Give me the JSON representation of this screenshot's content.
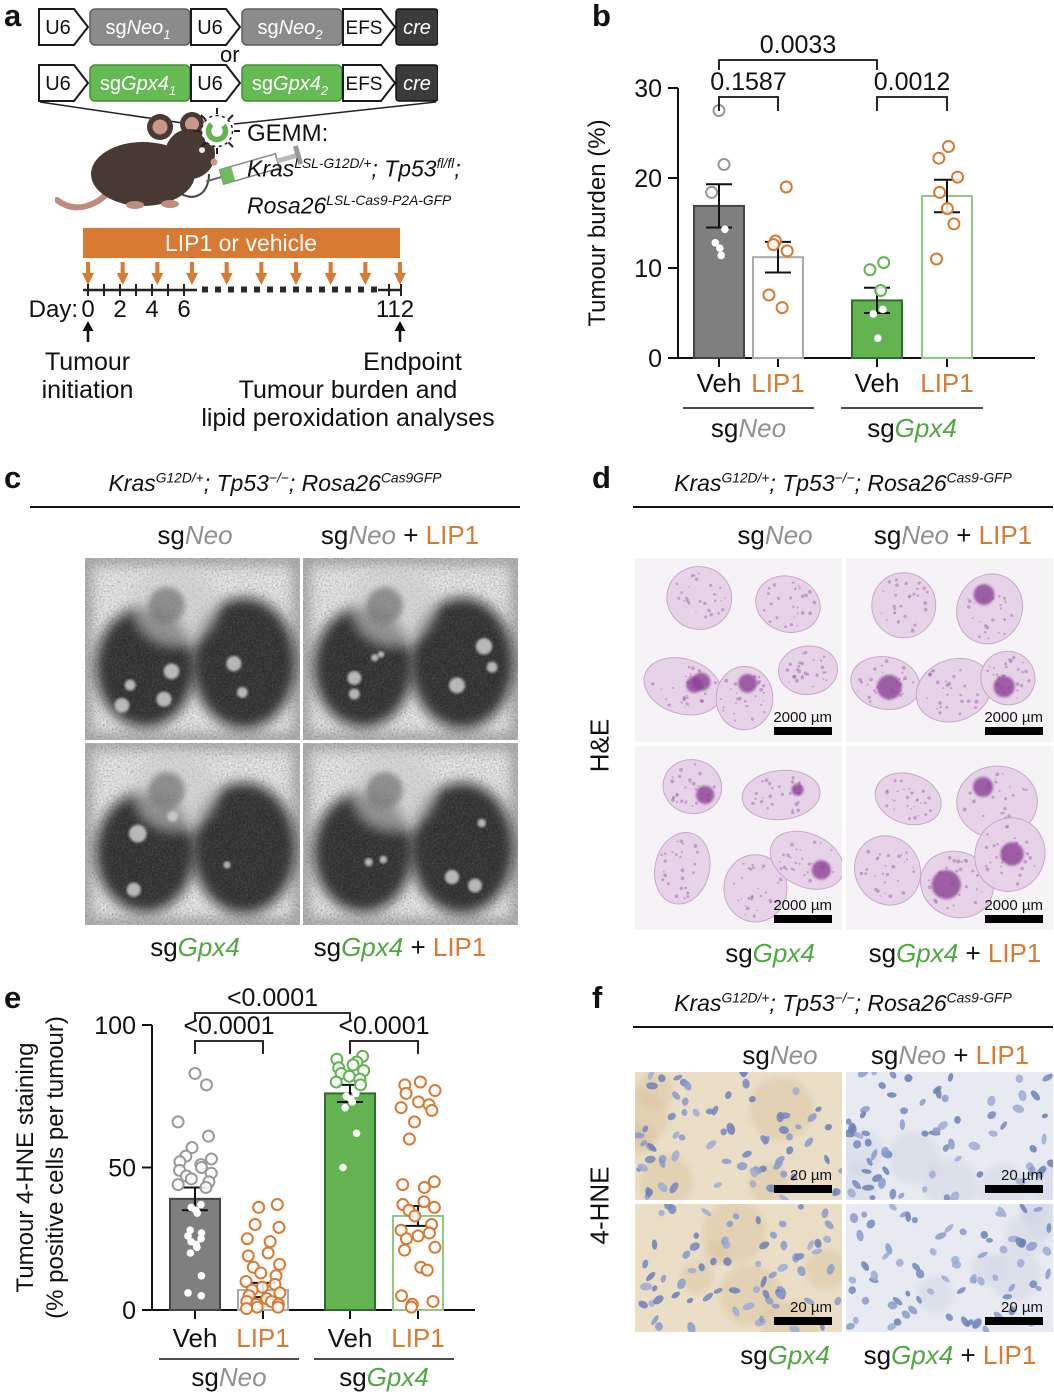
{
  "colors": {
    "orange": "#D97A33",
    "green": "#63B352",
    "green_text": "#4FA840",
    "gray_bar": "#7F7F7F",
    "gray_text": "#909090",
    "dark_box": "#3B3B3B"
  },
  "labels": {
    "neo": [
      {
        "t": "sg"
      },
      {
        "t": "Neo",
        "c": "i gray"
      }
    ],
    "neo_lip1": [
      {
        "t": "sg"
      },
      {
        "t": "Neo",
        "c": "i gray"
      },
      {
        "t": " + "
      },
      {
        "t": "LIP1",
        "c": "orange"
      }
    ],
    "gpx4": [
      {
        "t": "sg"
      },
      {
        "t": "Gpx4",
        "c": "i green"
      }
    ],
    "gpx4_lip1": [
      {
        "t": "sg"
      },
      {
        "t": "Gpx4",
        "c": "i green"
      },
      {
        "t": " + "
      },
      {
        "t": "LIP1",
        "c": "orange"
      }
    ]
  },
  "panel_a": {
    "letter": "a",
    "row1": {
      "p1": "U6",
      "g1": {
        "prefix": "sg",
        "gene": "Neo",
        "sub": "1"
      },
      "p2": "U6",
      "g2": {
        "prefix": "sg",
        "gene": "Neo",
        "sub": "2"
      },
      "efs": "EFS",
      "cre": "cre"
    },
    "row2": {
      "p1": "U6",
      "g1": {
        "prefix": "sg",
        "gene": "Gpx4",
        "sub": "1"
      },
      "p2": "U6",
      "g2": {
        "prefix": "sg",
        "gene": "Gpx4",
        "sub": "2"
      },
      "efs": "EFS",
      "cre": "cre"
    },
    "or_label": "or",
    "gemm_title": "GEMM:",
    "gemm_line1": [
      {
        "t": "Kras",
        "c": "i"
      },
      {
        "t": "LSL-G12D/+",
        "c": "i sup"
      },
      {
        "t": "; ",
        "c": "i"
      },
      {
        "t": "Tp53",
        "c": "i"
      },
      {
        "t": "fl/fl",
        "c": "i sup"
      },
      {
        "t": ";",
        "c": "i"
      }
    ],
    "gemm_line2": [
      {
        "t": "Rosa26",
        "c": "i"
      },
      {
        "t": "LSL-Cas9-P2A-GFP",
        "c": "i sup"
      }
    ],
    "treatment_label": "LIP1 or vehicle",
    "day_prefix": "Day:",
    "days": [
      "0",
      "2",
      "4",
      "6"
    ],
    "day_end": "112",
    "init_line1": "Tumour",
    "init_line2": "initiation",
    "endpoint_label": "Endpoint",
    "endpoint_line1": "Tumour burden and",
    "endpoint_line2": "lipid peroxidation analyses"
  },
  "panel_b": {
    "letter": "b"
  },
  "panel_c": {
    "letter": "c",
    "title": [
      {
        "t": "Kras",
        "c": "i"
      },
      {
        "t": "G12D/+",
        "c": "i sup"
      },
      {
        "t": "; ",
        "c": "i"
      },
      {
        "t": "Tp53",
        "c": "i"
      },
      {
        "t": "−/−",
        "c": "i sup"
      },
      {
        "t": "; ",
        "c": "i"
      },
      {
        "t": "Rosa26",
        "c": "i"
      },
      {
        "t": "Cas9GFP",
        "c": "i sup"
      }
    ]
  },
  "panel_d": {
    "letter": "d",
    "title": [
      {
        "t": "Kras",
        "c": "i"
      },
      {
        "t": "G12D/+",
        "c": "i sup"
      },
      {
        "t": "; ",
        "c": "i"
      },
      {
        "t": "Tp53",
        "c": "i"
      },
      {
        "t": "−/−",
        "c": "i sup"
      },
      {
        "t": "; ",
        "c": "i"
      },
      {
        "t": "Rosa26",
        "c": "i"
      },
      {
        "t": "Cas9-GFP",
        "c": "i sup"
      }
    ],
    "side_label": "H&E",
    "scalebar": "2000 µm"
  },
  "panel_e": {
    "letter": "e"
  },
  "panel_f": {
    "letter": "f",
    "title": [
      {
        "t": "Kras",
        "c": "i"
      },
      {
        "t": "G12D/+",
        "c": "i sup"
      },
      {
        "t": "; ",
        "c": "i"
      },
      {
        "t": "Tp53",
        "c": "i"
      },
      {
        "t": "−/−",
        "c": "i sup"
      },
      {
        "t": "; ",
        "c": "i"
      },
      {
        "t": "Rosa26",
        "c": "i"
      },
      {
        "t": "Cas9-GFP",
        "c": "i sup"
      }
    ],
    "side_label": "4-HNE",
    "scalebar": "20 µm"
  },
  "chart_data": [
    {
      "panel": "b",
      "type": "bar",
      "title": "",
      "ylabel_lines": [
        "Tumour burden (%)"
      ],
      "ylim": [
        0,
        30
      ],
      "yticks": [
        0,
        10,
        20,
        30
      ],
      "categories": [
        "Veh",
        "LIP1",
        "Veh",
        "LIP1"
      ],
      "category_colors": [
        "#111111",
        "#D97A33",
        "#111111",
        "#D97A33"
      ],
      "groups": [
        {
          "parts_ref": "labels.neo",
          "from": 0,
          "to": 1
        },
        {
          "parts_ref": "labels.gpx4",
          "from": 2,
          "to": 3
        }
      ],
      "bars": [
        {
          "mean": 16.9,
          "sem": 2.4,
          "fill": "#7F7F7F",
          "stroke": "#444444",
          "open_color": "#999999",
          "open_points": [
            27.5,
            21.5,
            18.4
          ],
          "white_points": [
            14.3,
            12.8,
            12.2,
            11.4
          ]
        },
        {
          "mean": 11.2,
          "sem": 1.7,
          "fill": "#FFFFFF",
          "stroke": "#AAAAAA",
          "open_color": "#D97A33",
          "open_points": [
            19.0,
            13.0,
            12.6,
            11.9,
            7.0,
            5.6
          ],
          "white_points": []
        },
        {
          "mean": 6.4,
          "sem": 1.4,
          "fill": "#63B352",
          "stroke": "#2E6E28",
          "open_color": "#63B352",
          "open_points": [
            10.6,
            9.8,
            7.5
          ],
          "white_points": [
            5.4,
            4.9,
            2.2
          ]
        },
        {
          "mean": 18.0,
          "sem": 1.8,
          "fill": "#FFFFFF",
          "stroke": "#8FC97F",
          "open_color": "#D97A33",
          "open_points": [
            23.5,
            22.2,
            20.1,
            18.4,
            16.6,
            14.9,
            11.0
          ],
          "white_points": []
        }
      ],
      "significance": [
        {
          "from": 0,
          "to": 1,
          "label": "0.1587",
          "level": 0
        },
        {
          "from": 2,
          "to": 3,
          "label": "0.0012",
          "level": 0
        },
        {
          "from": 0,
          "to": 2,
          "label": "0.0033",
          "level": 1
        }
      ]
    },
    {
      "panel": "e",
      "type": "bar",
      "title": "",
      "ylabel_lines": [
        "Tumour 4-HNE staining",
        "(% positive cells per tumour)"
      ],
      "ylim": [
        0,
        100
      ],
      "yticks": [
        0,
        50,
        100
      ],
      "categories": [
        "Veh",
        "LIP1",
        "Veh",
        "LIP1"
      ],
      "category_colors": [
        "#111111",
        "#D97A33",
        "#111111",
        "#D97A33"
      ],
      "groups": [
        {
          "parts_ref": "labels.neo",
          "from": 0,
          "to": 1
        },
        {
          "parts_ref": "labels.gpx4",
          "from": 2,
          "to": 3
        }
      ],
      "bars": [
        {
          "mean": 39,
          "sem": 4,
          "fill": "#7F7F7F",
          "stroke": "#444444",
          "open_color": "#999999",
          "open_points": [
            83,
            79,
            66,
            61,
            57,
            54,
            53,
            52,
            51,
            50,
            49,
            48,
            47,
            46,
            45,
            44,
            43
          ],
          "white_points": [
            37,
            36,
            35,
            34,
            28,
            27,
            26,
            25,
            24,
            23,
            22,
            20,
            12,
            6,
            5
          ]
        },
        {
          "mean": 7,
          "sem": 2.5,
          "fill": "#FFFFFF",
          "stroke": "#AAAAAA",
          "open_color": "#D97A33",
          "open_points": [
            37,
            36,
            30,
            29,
            25,
            24,
            20,
            19,
            16,
            15,
            13,
            12,
            10,
            9,
            8,
            7,
            6,
            5,
            4,
            3,
            3,
            2,
            2,
            1,
            1,
            0.5
          ],
          "white_points": []
        },
        {
          "mean": 76,
          "sem": 3,
          "fill": "#63B352",
          "stroke": "#2E6E28",
          "open_color": "#63B352",
          "open_points": [
            89,
            88,
            87,
            86,
            85,
            84,
            83,
            82,
            81,
            80,
            79
          ],
          "white_points": [
            76,
            75,
            74,
            73,
            71,
            62,
            50
          ]
        },
        {
          "mean": 33,
          "sem": 3.5,
          "fill": "#FFFFFF",
          "stroke": "#8FC97F",
          "open_color": "#D97A33",
          "open_points": [
            80,
            79,
            77,
            76,
            73,
            72,
            71,
            70,
            66,
            60,
            45,
            44,
            43,
            38,
            37,
            36,
            35,
            33,
            30,
            28,
            27,
            26,
            25,
            22,
            21,
            15,
            14,
            5,
            3,
            2,
            1
          ],
          "white_points": []
        }
      ],
      "significance": [
        {
          "from": 0,
          "to": 1,
          "label": "<0.0001",
          "level": 0
        },
        {
          "from": 2,
          "to": 3,
          "label": "<0.0001",
          "level": 0
        },
        {
          "from": 0,
          "to": 2,
          "label": "<0.0001",
          "level": 1
        }
      ]
    }
  ]
}
